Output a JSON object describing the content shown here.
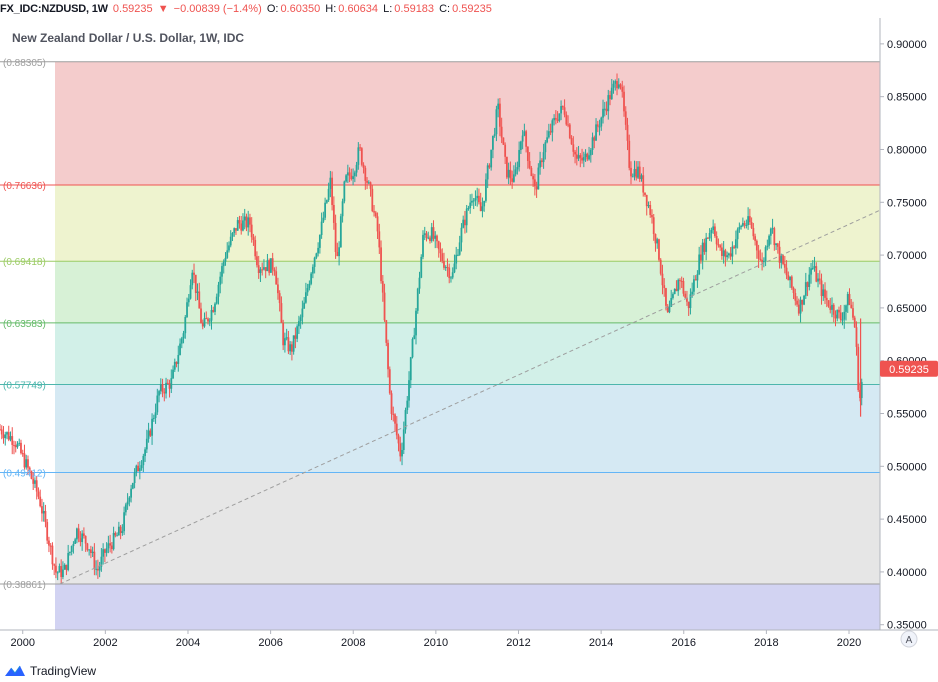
{
  "header": {
    "symbol": "FX_IDC:NZDUSD, 1W",
    "last": "0.59235",
    "arrow": "▼",
    "change": "−0.00839 (−1.4%)",
    "o_label": "O:",
    "o_value": "0.60350",
    "h_label": "H:",
    "h_value": "0.60634",
    "l_label": "L:",
    "l_value": "0.59183",
    "c_label": "C:",
    "c_value": "0.59235"
  },
  "footer": {
    "brand": "TradingView",
    "auto_button": "A"
  },
  "colors": {
    "up": "#26a69a",
    "down": "#ef5350",
    "trendline": "#9e9e9e",
    "price_tag": "#ef5350"
  },
  "chart_data": {
    "type": "candlestick",
    "title": "New Zealand Dollar / U.S. Dollar, 1W, IDC",
    "ylim": [
      0.345,
      0.9245
    ],
    "xlim": [
      1999.45,
      2020.75
    ],
    "y_ticks": [
      "0.35000",
      "0.40000",
      "0.45000",
      "0.50000",
      "0.55000",
      "0.60000",
      "0.65000",
      "0.70000",
      "0.75000",
      "0.80000",
      "0.85000",
      "0.90000"
    ],
    "x_ticks": [
      "2000",
      "2002",
      "2004",
      "2006",
      "2008",
      "2010",
      "2012",
      "2014",
      "2016",
      "2018",
      "2020"
    ],
    "last_price": "0.59235",
    "fib_levels": [
      {
        "label": "0.88305",
        "value": 0.88305,
        "line": "#9e9e9e",
        "fill": "#f4cccc"
      },
      {
        "label": "0.76636",
        "value": 0.76636,
        "line": "#ef5350",
        "fill": "#eef3cf"
      },
      {
        "label": "0.69418",
        "value": 0.69418,
        "line": "#9ccc65",
        "fill": "#d7f1d6"
      },
      {
        "label": "0.63583",
        "value": 0.63583,
        "line": "#66bb6a",
        "fill": "#d2f0e8"
      },
      {
        "label": "0.57749",
        "value": 0.57749,
        "line": "#4db6ac",
        "fill": "#d5e9f3"
      },
      {
        "label": "0.49412",
        "value": 0.49412,
        "line": "#64b5f6",
        "fill": "#e6e6e6"
      },
      {
        "label": "0.38861",
        "value": 0.38861,
        "line": "#9e9e9e",
        "fill": "#d2d3f2"
      }
    ],
    "trendline": [
      [
        2000.9,
        0.3886
      ],
      [
        2020.75,
        0.7425
      ]
    ],
    "series_close_anchors": [
      [
        1999.45,
        0.535
      ],
      [
        1999.8,
        0.525
      ],
      [
        2000.1,
        0.5
      ],
      [
        2000.4,
        0.47
      ],
      [
        2000.8,
        0.4
      ],
      [
        2001.0,
        0.4
      ],
      [
        2001.3,
        0.44
      ],
      [
        2001.6,
        0.425
      ],
      [
        2001.8,
        0.4
      ],
      [
        2002.0,
        0.42
      ],
      [
        2002.4,
        0.44
      ],
      [
        2002.6,
        0.48
      ],
      [
        2003.0,
        0.52
      ],
      [
        2003.3,
        0.57
      ],
      [
        2003.6,
        0.58
      ],
      [
        2003.9,
        0.63
      ],
      [
        2004.1,
        0.69
      ],
      [
        2004.35,
        0.63
      ],
      [
        2004.6,
        0.65
      ],
      [
        2004.9,
        0.7
      ],
      [
        2005.2,
        0.73
      ],
      [
        2005.5,
        0.73
      ],
      [
        2005.7,
        0.69
      ],
      [
        2005.9,
        0.69
      ],
      [
        2006.1,
        0.69
      ],
      [
        2006.3,
        0.62
      ],
      [
        2006.5,
        0.61
      ],
      [
        2006.8,
        0.65
      ],
      [
        2007.0,
        0.69
      ],
      [
        2007.2,
        0.72
      ],
      [
        2007.45,
        0.77
      ],
      [
        2007.6,
        0.69
      ],
      [
        2007.8,
        0.77
      ],
      [
        2008.0,
        0.78
      ],
      [
        2008.15,
        0.8
      ],
      [
        2008.4,
        0.76
      ],
      [
        2008.6,
        0.72
      ],
      [
        2008.75,
        0.64
      ],
      [
        2008.9,
        0.56
      ],
      [
        2009.15,
        0.51
      ],
      [
        2009.4,
        0.6
      ],
      [
        2009.7,
        0.72
      ],
      [
        2009.9,
        0.72
      ],
      [
        2010.1,
        0.7
      ],
      [
        2010.4,
        0.68
      ],
      [
        2010.6,
        0.72
      ],
      [
        2010.9,
        0.76
      ],
      [
        2011.1,
        0.74
      ],
      [
        2011.3,
        0.79
      ],
      [
        2011.5,
        0.84
      ],
      [
        2011.7,
        0.78
      ],
      [
        2011.9,
        0.77
      ],
      [
        2012.1,
        0.82
      ],
      [
        2012.4,
        0.76
      ],
      [
        2012.6,
        0.8
      ],
      [
        2012.9,
        0.83
      ],
      [
        2013.1,
        0.84
      ],
      [
        2013.4,
        0.79
      ],
      [
        2013.6,
        0.79
      ],
      [
        2013.9,
        0.82
      ],
      [
        2014.2,
        0.85
      ],
      [
        2014.45,
        0.87
      ],
      [
        2014.7,
        0.78
      ],
      [
        2014.9,
        0.78
      ],
      [
        2015.2,
        0.74
      ],
      [
        2015.4,
        0.7
      ],
      [
        2015.6,
        0.64
      ],
      [
        2015.9,
        0.68
      ],
      [
        2016.1,
        0.65
      ],
      [
        2016.4,
        0.7
      ],
      [
        2016.7,
        0.73
      ],
      [
        2016.9,
        0.7
      ],
      [
        2017.1,
        0.7
      ],
      [
        2017.4,
        0.73
      ],
      [
        2017.6,
        0.73
      ],
      [
        2017.9,
        0.69
      ],
      [
        2018.1,
        0.73
      ],
      [
        2018.3,
        0.7
      ],
      [
        2018.6,
        0.67
      ],
      [
        2018.8,
        0.65
      ],
      [
        2019.1,
        0.69
      ],
      [
        2019.4,
        0.66
      ],
      [
        2019.6,
        0.65
      ],
      [
        2019.8,
        0.64
      ],
      [
        2020.0,
        0.66
      ],
      [
        2020.15,
        0.63
      ],
      [
        2020.25,
        0.56
      ],
      [
        2020.35,
        0.592
      ]
    ]
  }
}
